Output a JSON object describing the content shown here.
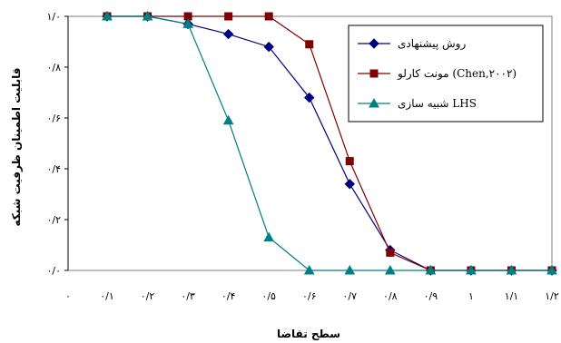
{
  "chart_data": {
    "type": "line",
    "xlabel": "سطح تقاضا",
    "ylabel": "قابلیت اطمینان ظرفیت شبکه",
    "x": [
      0.1,
      0.2,
      0.3,
      0.4,
      0.5,
      0.6,
      0.7,
      0.8,
      0.9,
      1.0,
      1.1,
      1.2
    ],
    "x_tick_labels": [
      "۰",
      "۰/۱",
      "۰/۲",
      "۰/۳",
      "۰/۴",
      "۰/۵",
      "۰/۶",
      "۰/۷",
      "۰/۸",
      "۰/۹",
      "۱",
      "۱/۱",
      "۱/۲"
    ],
    "x_tick_values": [
      0,
      0.1,
      0.2,
      0.3,
      0.4,
      0.5,
      0.6,
      0.7,
      0.8,
      0.9,
      1.0,
      1.1,
      1.2
    ],
    "xlim": [
      0.1,
      1.2
    ],
    "y_tick_labels": [
      "۰/۰",
      "۰/۲",
      "۰/۴",
      "۰/۶",
      "۰/۸",
      "۱/۰"
    ],
    "y_tick_values": [
      0,
      0.2,
      0.4,
      0.6,
      0.8,
      1.0
    ],
    "ylim": [
      0,
      1.0
    ],
    "grid": false,
    "legend_position": "top-right",
    "series": [
      {
        "name": "روش پیشنهادی",
        "color": "#00007f",
        "marker": "diamond",
        "values": [
          1.0,
          1.0,
          0.97,
          0.93,
          0.88,
          0.68,
          0.34,
          0.08,
          0.0,
          0.0,
          0.0,
          0.0
        ]
      },
      {
        "name": "مونت کارلو (Chen,۲۰۰۲)",
        "color": "#7f0000",
        "marker": "square",
        "values": [
          1.0,
          1.0,
          1.0,
          1.0,
          1.0,
          0.89,
          0.43,
          0.07,
          0.0,
          0.0,
          0.0,
          0.0
        ]
      },
      {
        "name": "شبیه سازی LHS",
        "color": "#008080",
        "marker": "triangle",
        "values": [
          1.0,
          1.0,
          0.97,
          0.59,
          0.13,
          0.0,
          0.0,
          0.0,
          0.0,
          0.0,
          0.0,
          0.0
        ]
      }
    ]
  }
}
